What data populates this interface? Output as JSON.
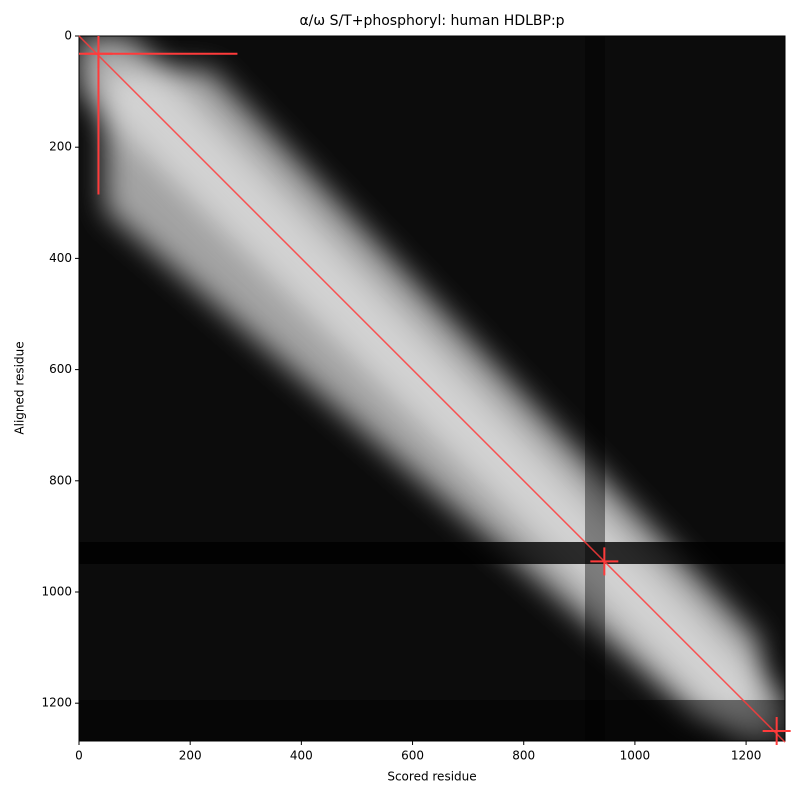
{
  "chart_data": {
    "type": "heatmap",
    "title": "α/ω S/T+phosphoryl: human HDLBP:p",
    "x_label": "Scored residue",
    "y_label": "Aligned residue",
    "xlim": [
      0,
      1270
    ],
    "ylim": [
      1268,
      0
    ],
    "xticks": [
      0,
      200,
      400,
      600,
      800,
      1000,
      1200
    ],
    "yticks": [
      0,
      200,
      400,
      600,
      800,
      1000,
      1200
    ],
    "colormap": "gray",
    "diagonal": true,
    "marker_color": "#ff3b3b",
    "markers": [
      {
        "x": 35,
        "y": 32,
        "range": [
          0,
          285
        ]
      },
      {
        "x": 945,
        "y": 945
      },
      {
        "x": 1255,
        "y": 1250
      }
    ]
  }
}
